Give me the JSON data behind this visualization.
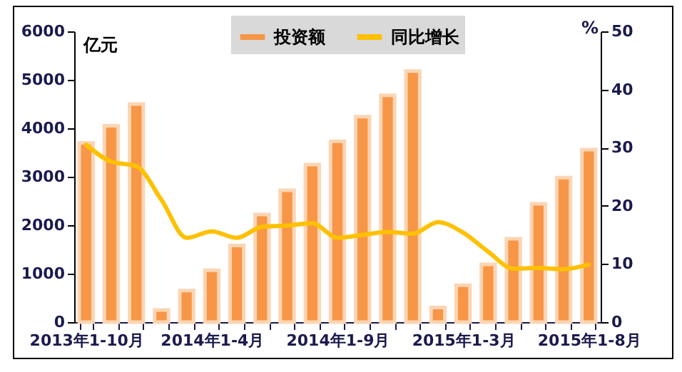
{
  "chart_data": {
    "type": "bar",
    "categories": [
      "2013年1-10月",
      null,
      null,
      null,
      null,
      "2014年1-4月",
      null,
      null,
      null,
      null,
      "2014年1-9月",
      null,
      null,
      null,
      null,
      "2015年1-3月",
      null,
      null,
      null,
      null,
      "2015年1-8月"
    ],
    "series": [
      {
        "name": "投资额",
        "color": "#f79646",
        "values": [
          3700,
          4050,
          4500,
          250,
          650,
          1070,
          1580,
          2220,
          2720,
          3250,
          3730,
          4240,
          4680,
          5180,
          300,
          760,
          1190,
          1720,
          2440,
          2980,
          3560
        ]
      },
      {
        "name": "同比增长",
        "type": "line",
        "axis": "y2",
        "color": "#ffc000",
        "values": [
          30.5,
          27.6,
          26.8,
          21,
          14.5,
          15.6,
          14.5,
          16.4,
          16.6,
          17,
          14.5,
          15,
          15.5,
          15.2,
          17.2,
          15.4,
          12.1,
          9.2,
          9.3,
          9.1,
          9.9
        ]
      }
    ],
    "ylabel": "亿元",
    "y2label": "%",
    "ylim": [
      0,
      6000
    ],
    "yticks": [
      0,
      1000,
      2000,
      3000,
      4000,
      5000,
      6000
    ],
    "y2lim": [
      0,
      50
    ],
    "y2ticks": [
      0,
      10,
      20,
      30,
      40,
      50
    ],
    "legend": "top"
  }
}
